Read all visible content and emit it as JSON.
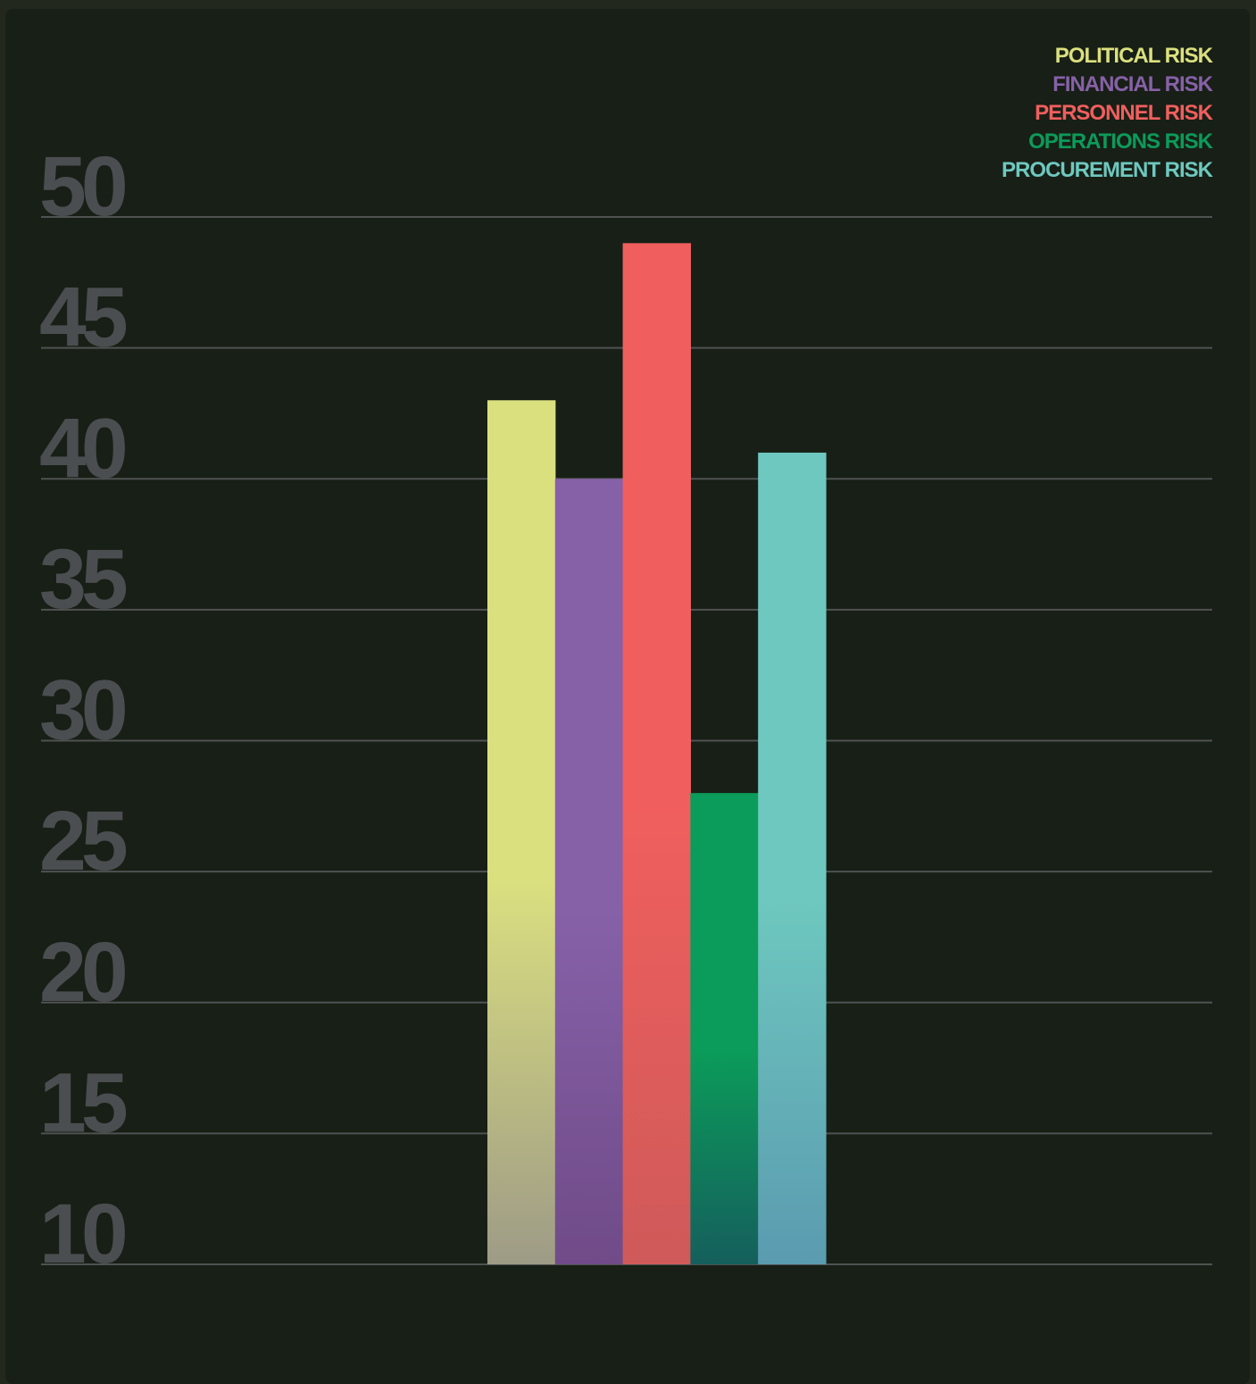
{
  "colors": {
    "background": "#181f16",
    "frame": "#23281f",
    "gridline": "#4f5252",
    "tick_text": "#4b4e50"
  },
  "chart_data": {
    "type": "bar",
    "title": "",
    "xlabel": "",
    "ylabel": "",
    "ylim": [
      10,
      50
    ],
    "yticks": [
      50,
      45,
      40,
      35,
      30,
      25,
      20,
      15,
      10
    ],
    "grid": true,
    "legend_position": "top-right",
    "series": [
      {
        "name": "POLITICAL RISK",
        "value": 43,
        "color": "#dbe07f",
        "color_bottom": "#9e9b86"
      },
      {
        "name": "FINANCIAL RISK",
        "value": 40,
        "color": "#8661a8",
        "color_bottom": "#704b88"
      },
      {
        "name": "PERSONNEL RISK",
        "value": 49,
        "color": "#f05f5e",
        "color_bottom": "#cf5a59"
      },
      {
        "name": "OPERATIONS RISK",
        "value": 28,
        "color": "#0b9b5a",
        "color_bottom": "#155f5c"
      },
      {
        "name": "PROCUREMENT RISK",
        "value": 41,
        "color": "#6ec8bf",
        "color_bottom": "#5b9bb0"
      }
    ]
  }
}
